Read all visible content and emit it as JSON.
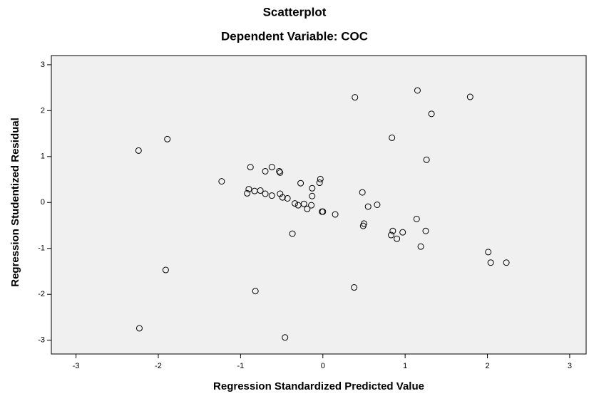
{
  "chart_data": {
    "type": "scatter",
    "title": "Scatterplot",
    "subtitle": "Dependent Variable: COC",
    "x_label": "Regression Standardized Predicted Value",
    "y_label": "Regression Studentized Residual",
    "x": [
      -2.24,
      -1.89,
      0.39,
      1.15,
      1.79,
      1.32,
      0.84,
      1.26,
      -1.23,
      -0.88,
      -0.7,
      -0.62,
      -0.53,
      -0.52,
      -0.03,
      -0.04,
      -0.27,
      -0.13,
      0.48,
      -0.9,
      -0.92,
      -0.83,
      -0.76,
      -0.7,
      -0.62,
      -0.52,
      -0.49,
      -0.43,
      -0.13,
      -0.34,
      -0.3,
      -0.23,
      -0.19,
      -0.14,
      -0.01,
      0.0,
      0.15,
      0.66,
      0.55,
      1.14,
      0.5,
      0.49,
      -0.37,
      0.85,
      0.97,
      0.83,
      0.9,
      1.25,
      1.19,
      2.01,
      2.04,
      2.23,
      -1.91,
      -0.82,
      0.38,
      -2.23,
      -0.46
    ],
    "y": [
      1.13,
      1.38,
      2.29,
      2.44,
      2.3,
      1.93,
      1.41,
      0.93,
      0.46,
      0.77,
      0.68,
      0.77,
      0.68,
      0.65,
      0.51,
      0.43,
      0.42,
      0.31,
      0.22,
      0.29,
      0.2,
      0.25,
      0.26,
      0.19,
      0.15,
      0.19,
      0.11,
      0.09,
      0.14,
      -0.02,
      -0.06,
      -0.03,
      -0.14,
      -0.06,
      -0.2,
      -0.2,
      -0.26,
      -0.05,
      -0.09,
      -0.36,
      -0.46,
      -0.51,
      -0.68,
      -0.62,
      -0.65,
      -0.71,
      -0.79,
      -0.62,
      -0.96,
      -1.08,
      -1.31,
      -1.31,
      -1.47,
      -1.93,
      -1.85,
      -2.74,
      -2.94
    ],
    "xlim": [
      -3.3,
      3.2
    ],
    "ylim": [
      -3.3,
      3.2
    ],
    "xticks": [
      -3,
      -2,
      -1,
      0,
      1,
      2,
      3
    ],
    "yticks": [
      -3,
      -2,
      -1,
      0,
      1,
      2,
      3
    ],
    "color": "#000000",
    "background": "#f0f0f0"
  }
}
